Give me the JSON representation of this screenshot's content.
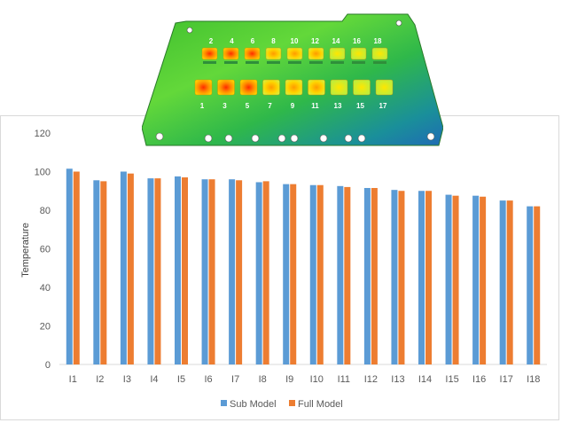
{
  "board_image": {
    "top_numbers": [
      "2",
      "4",
      "6",
      "8",
      "10",
      "12",
      "14",
      "16",
      "18"
    ],
    "bottom_numbers": [
      "1",
      "3",
      "5",
      "7",
      "9",
      "11",
      "13",
      "15",
      "17"
    ]
  },
  "chart_data": {
    "type": "bar",
    "title": "",
    "xlabel": "",
    "ylabel": "Temperature",
    "ylim": [
      0,
      120
    ],
    "yticks": [
      "0",
      "20",
      "40",
      "60",
      "80",
      "100",
      "120"
    ],
    "grid": false,
    "legend_position": "bottom",
    "categories": [
      "I1",
      "I2",
      "I3",
      "I4",
      "I5",
      "I6",
      "I7",
      "I8",
      "I9",
      "I10",
      "I11",
      "I12",
      "I13",
      "I14",
      "I15",
      "I16",
      "I17",
      "I18"
    ],
    "series": [
      {
        "name": "Sub Model",
        "color": "#5B9BD5",
        "values": [
          101.5,
          95.5,
          100,
          96.5,
          97.5,
          96,
          96,
          94.5,
          93.5,
          93,
          92.5,
          91.5,
          90.5,
          90,
          88,
          87.5,
          85,
          82
        ]
      },
      {
        "name": "Full Model",
        "color": "#ED7D31",
        "values": [
          100,
          95,
          99,
          96.5,
          97,
          96,
          95.5,
          95,
          93.5,
          93,
          92,
          91.5,
          90,
          90,
          87.5,
          87,
          85,
          82
        ]
      }
    ]
  }
}
